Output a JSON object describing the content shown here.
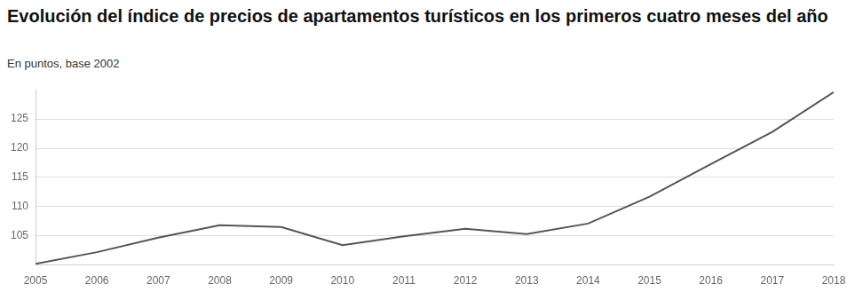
{
  "chart_data": {
    "type": "line",
    "title": "Evolución del índice de precios de apartamentos turísticos en los primeros cuatro meses del año",
    "subtitle": "En puntos, base 2002",
    "categories": [
      "2005",
      "2006",
      "2007",
      "2008",
      "2009",
      "2010",
      "2011",
      "2012",
      "2013",
      "2014",
      "2015",
      "2016",
      "2017",
      "2018"
    ],
    "values": [
      100.2,
      102.2,
      104.7,
      106.8,
      106.5,
      103.4,
      104.9,
      106.2,
      105.3,
      107.1,
      111.7,
      117.3,
      122.8,
      129.6
    ],
    "color": "#555555",
    "marker": "none",
    "ylim": [
      100,
      130
    ],
    "yticks": [
      105,
      110,
      115,
      120,
      125
    ],
    "grid": true
  }
}
